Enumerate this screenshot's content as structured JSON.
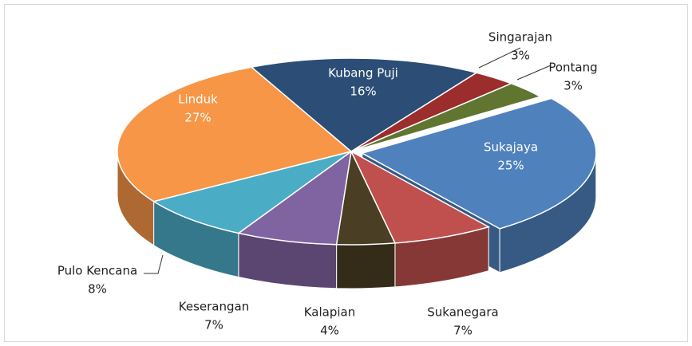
{
  "chart_data": {
    "type": "pie3d",
    "categories": [
      "Sukajaya",
      "Sukanegara",
      "Kalapian",
      "Keserangan",
      "Pulo Kencana",
      "Linduk",
      "Kubang Puji",
      "Singarajan",
      "Pontang"
    ],
    "values": [
      25,
      7,
      4,
      7,
      8,
      27,
      16,
      3,
      3
    ],
    "value_labels": [
      "25%",
      "7%",
      "4%",
      "7%",
      "8%",
      "27%",
      "16%",
      "3%",
      "3%"
    ],
    "colors": [
      "#4f81bd",
      "#c0504d",
      "#4a3f24",
      "#8064a2",
      "#4bacc6",
      "#f79646",
      "#2c4d75",
      "#9b2d2d",
      "#5f7530"
    ]
  }
}
